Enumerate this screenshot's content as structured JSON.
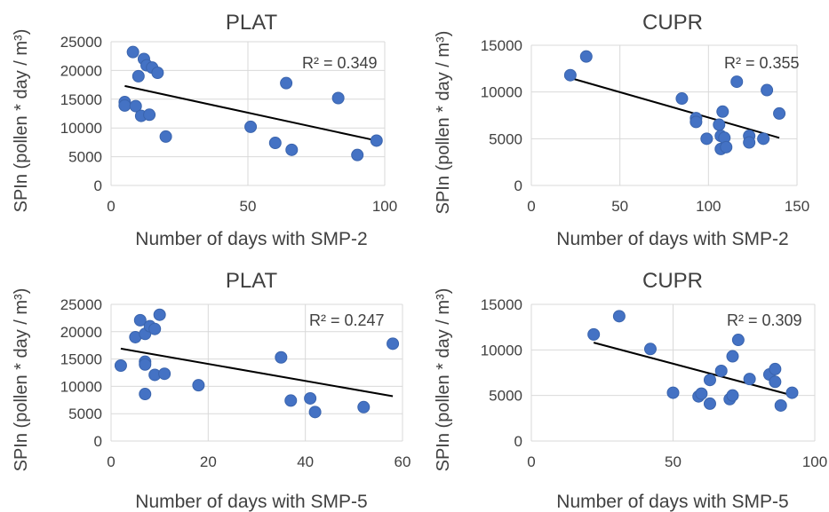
{
  "chart_data": [
    {
      "type": "scatter",
      "title": "PLAT",
      "xlabel": "Number of days with SMP-2",
      "ylabel": "SPIn (pollen * day / m³)",
      "xlim": [
        0,
        100
      ],
      "ylim": [
        0,
        25000
      ],
      "xticks": [
        "0",
        "50",
        "100"
      ],
      "yticks": [
        "0",
        "5000",
        "10000",
        "15000",
        "20000",
        "25000"
      ],
      "grid": true,
      "point_color": "#4472C4",
      "trendline": {
        "x1": 5,
        "y1": 17300,
        "x2": 97,
        "y2": 7800
      },
      "r2_label": "R² = 0.349",
      "points": [
        {
          "x": 5,
          "y": 14500
        },
        {
          "x": 5,
          "y": 13900
        },
        {
          "x": 8,
          "y": 23200
        },
        {
          "x": 9,
          "y": 13800
        },
        {
          "x": 10,
          "y": 19000
        },
        {
          "x": 11,
          "y": 12100
        },
        {
          "x": 12,
          "y": 22000
        },
        {
          "x": 13,
          "y": 20900
        },
        {
          "x": 14,
          "y": 12300
        },
        {
          "x": 15,
          "y": 20500
        },
        {
          "x": 17,
          "y": 19600
        },
        {
          "x": 20,
          "y": 8500
        },
        {
          "x": 51,
          "y": 10200
        },
        {
          "x": 60,
          "y": 7400
        },
        {
          "x": 64,
          "y": 17800
        },
        {
          "x": 66,
          "y": 6200
        },
        {
          "x": 83,
          "y": 15200
        },
        {
          "x": 90,
          "y": 5300
        },
        {
          "x": 97,
          "y": 7800
        }
      ]
    },
    {
      "type": "scatter",
      "title": "CUPR",
      "xlabel": "Number of days with SMP-2",
      "ylabel": "SPIn (pollen * day / m³)",
      "xlim": [
        0,
        150
      ],
      "ylim": [
        0,
        15000
      ],
      "xticks": [
        "0",
        "50",
        "100",
        "150"
      ],
      "yticks": [
        "0",
        "5000",
        "10000",
        "15000"
      ],
      "grid": true,
      "point_color": "#4472C4",
      "trendline": {
        "x1": 22,
        "y1": 11500,
        "x2": 140,
        "y2": 5100
      },
      "r2_label": "R² = 0.355",
      "points": [
        {
          "x": 22,
          "y": 11800
        },
        {
          "x": 31,
          "y": 13800
        },
        {
          "x": 85,
          "y": 9300
        },
        {
          "x": 93,
          "y": 7200
        },
        {
          "x": 93,
          "y": 6800
        },
        {
          "x": 99,
          "y": 5000
        },
        {
          "x": 106,
          "y": 6500
        },
        {
          "x": 107,
          "y": 5300
        },
        {
          "x": 107,
          "y": 3900
        },
        {
          "x": 108,
          "y": 7900
        },
        {
          "x": 109,
          "y": 5100
        },
        {
          "x": 110,
          "y": 4100
        },
        {
          "x": 116,
          "y": 11100
        },
        {
          "x": 123,
          "y": 5300
        },
        {
          "x": 123,
          "y": 4600
        },
        {
          "x": 131,
          "y": 5000
        },
        {
          "x": 133,
          "y": 10200
        },
        {
          "x": 140,
          "y": 7700
        }
      ]
    },
    {
      "type": "scatter",
      "title": "PLAT",
      "xlabel": "Number of days with SMP-5",
      "ylabel": "SPIn (pollen * day / m³)",
      "xlim": [
        0,
        60
      ],
      "ylim": [
        0,
        25000
      ],
      "xticks": [
        "0",
        "20",
        "40",
        "60"
      ],
      "yticks": [
        "0",
        "5000",
        "10000",
        "15000",
        "20000",
        "25000"
      ],
      "grid": true,
      "point_color": "#4472C4",
      "trendline": {
        "x1": 2,
        "y1": 16900,
        "x2": 58,
        "y2": 8200
      },
      "r2_label": "R² = 0.247",
      "points": [
        {
          "x": 2,
          "y": 13800
        },
        {
          "x": 5,
          "y": 19000
        },
        {
          "x": 6,
          "y": 22100
        },
        {
          "x": 7,
          "y": 19600
        },
        {
          "x": 7,
          "y": 14500
        },
        {
          "x": 7,
          "y": 14000
        },
        {
          "x": 7,
          "y": 8600
        },
        {
          "x": 8,
          "y": 21000
        },
        {
          "x": 9,
          "y": 20500
        },
        {
          "x": 9,
          "y": 12100
        },
        {
          "x": 10,
          "y": 23100
        },
        {
          "x": 11,
          "y": 12300
        },
        {
          "x": 18,
          "y": 10200
        },
        {
          "x": 35,
          "y": 15300
        },
        {
          "x": 37,
          "y": 7400
        },
        {
          "x": 41,
          "y": 7800
        },
        {
          "x": 42,
          "y": 5300
        },
        {
          "x": 52,
          "y": 6200
        },
        {
          "x": 58,
          "y": 17800
        }
      ]
    },
    {
      "type": "scatter",
      "title": "CUPR",
      "xlabel": "Number of days with SMP-5",
      "ylabel": "SPIn (pollen * day / m³)",
      "xlim": [
        0,
        100
      ],
      "ylim": [
        0,
        15000
      ],
      "xticks": [
        "0",
        "50",
        "100"
      ],
      "yticks": [
        "0",
        "5000",
        "10000",
        "15000"
      ],
      "grid": true,
      "point_color": "#4472C4",
      "trendline": {
        "x1": 22,
        "y1": 10800,
        "x2": 91,
        "y2": 5100
      },
      "r2_label": "R² = 0.309",
      "points": [
        {
          "x": 22,
          "y": 11700
        },
        {
          "x": 31,
          "y": 13700
        },
        {
          "x": 42,
          "y": 10100
        },
        {
          "x": 50,
          "y": 5300
        },
        {
          "x": 59,
          "y": 4900
        },
        {
          "x": 60,
          "y": 5200
        },
        {
          "x": 63,
          "y": 6700
        },
        {
          "x": 63,
          "y": 4100
        },
        {
          "x": 67,
          "y": 7700
        },
        {
          "x": 70,
          "y": 4600
        },
        {
          "x": 71,
          "y": 9300
        },
        {
          "x": 71,
          "y": 5000
        },
        {
          "x": 73,
          "y": 11100
        },
        {
          "x": 77,
          "y": 6800
        },
        {
          "x": 84,
          "y": 7300
        },
        {
          "x": 86,
          "y": 7900
        },
        {
          "x": 86,
          "y": 6500
        },
        {
          "x": 88,
          "y": 3900
        },
        {
          "x": 92,
          "y": 5300
        }
      ]
    }
  ]
}
